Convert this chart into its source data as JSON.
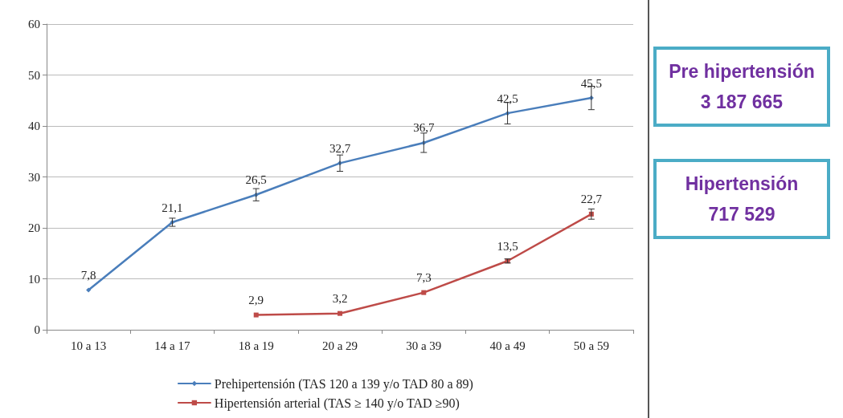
{
  "chart_data": {
    "type": "line",
    "categories": [
      "10 a 13",
      "14 a 17",
      "18 a 19",
      "20 a 29",
      "30 a 39",
      "40 a 49",
      "50 a 59"
    ],
    "series": [
      {
        "name": "Prehipertensión (TAS 120 a 139 y/o TAD 80 a 89)",
        "color": "#4a7ebb",
        "marker": "diamond",
        "values": [
          7.8,
          21.1,
          26.5,
          32.7,
          36.7,
          42.5,
          45.5
        ],
        "value_labels": [
          "7,8",
          "21,1",
          "26,5",
          "32,7",
          "36,7",
          "42,5",
          "45,5"
        ],
        "errors": [
          null,
          0.8,
          1.2,
          1.6,
          1.9,
          2.1,
          2.3
        ]
      },
      {
        "name": "Hipertensión arterial (TAS ≥ 140 y/o TAD ≥90)",
        "color": "#be4b48",
        "marker": "square",
        "values": [
          null,
          null,
          2.9,
          3.2,
          7.3,
          13.5,
          22.7
        ],
        "value_labels": [
          null,
          null,
          "2,9",
          "3,2",
          "7,3",
          "13,5",
          "22,7"
        ],
        "errors": [
          null,
          null,
          null,
          null,
          null,
          0.4,
          1.0
        ]
      }
    ],
    "ylim": [
      0,
      60
    ],
    "yticks": [
      0,
      10,
      20,
      30,
      40,
      50,
      60
    ],
    "grid": "y",
    "legend": "bottom",
    "line_style": "solid",
    "annotations": [
      "Pre hipertensión",
      "3 187 665",
      "Hipertensión",
      "717 529"
    ]
  }
}
